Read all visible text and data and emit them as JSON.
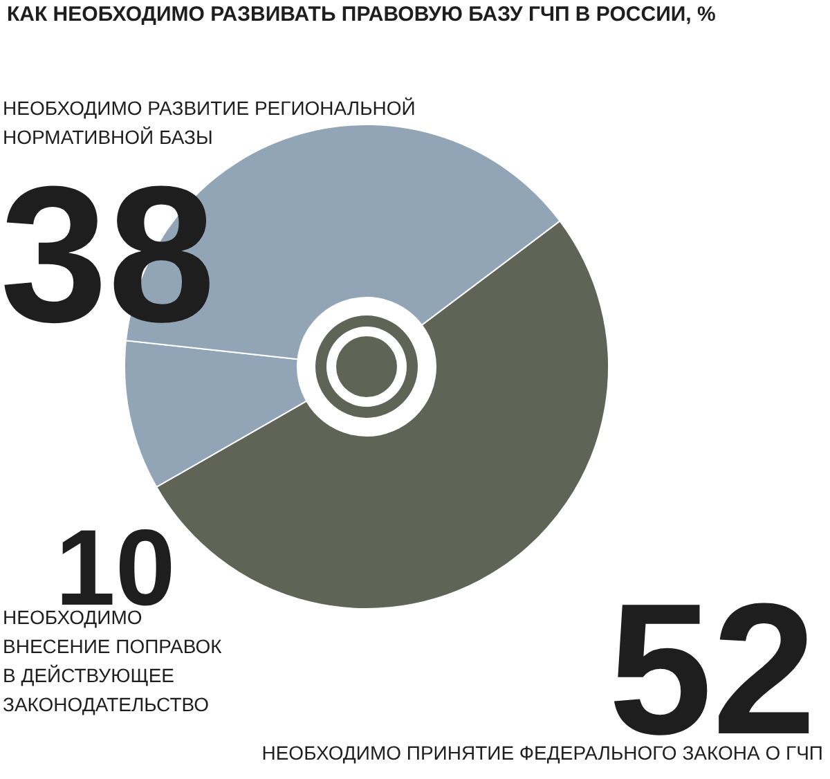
{
  "chart_data": {
    "type": "donut",
    "title": "КАК НЕОБХОДИМО РАЗВИВАТЬ ПРАВОВУЮ БАЗУ ГЧП В РОССИИ, %",
    "categories": [
      "НЕОБХОДИМО ПРИНЯТИЕ ФЕДЕРАЛЬНОГО ЗАКОНА О ГЧП",
      "НЕОБХОДИМО\nВНЕСЕНИЕ ПОПРАВОК\nВ ДЕЙСТВУЮЩЕЕ\nЗАКОНОДАТЕЛЬСТВО",
      "НЕОБХОДИМО РАЗВИТИЕ РЕГИОНАЛЬНОЙ\nНОРМАТИВНОЙ БАЗЫ"
    ],
    "values": [
      52,
      10,
      38
    ],
    "colors": [
      "#5f6456",
      "#91a5b6",
      "#91a5b6"
    ],
    "data_labels": true
  }
}
